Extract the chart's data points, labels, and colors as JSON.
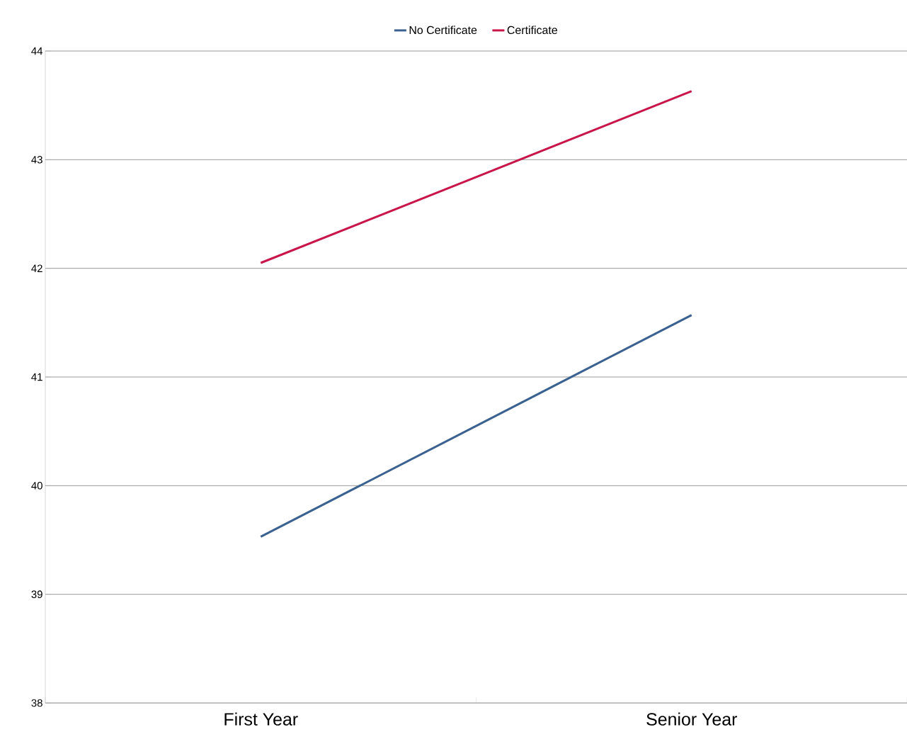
{
  "chart_data": {
    "type": "line",
    "categories": [
      "First Year",
      "Senior Year"
    ],
    "series": [
      {
        "name": "No Certificate",
        "color": "#3a6190",
        "values": [
          39.53,
          41.57
        ]
      },
      {
        "name": "Certificate",
        "color": "#c8164a",
        "values": [
          42.05,
          43.63
        ]
      }
    ],
    "ylim": [
      38,
      44
    ],
    "yticks": [
      38,
      39,
      40,
      41,
      42,
      43,
      44
    ],
    "grid": "y",
    "legend": "top",
    "marker": "none",
    "line_style": "solid"
  }
}
